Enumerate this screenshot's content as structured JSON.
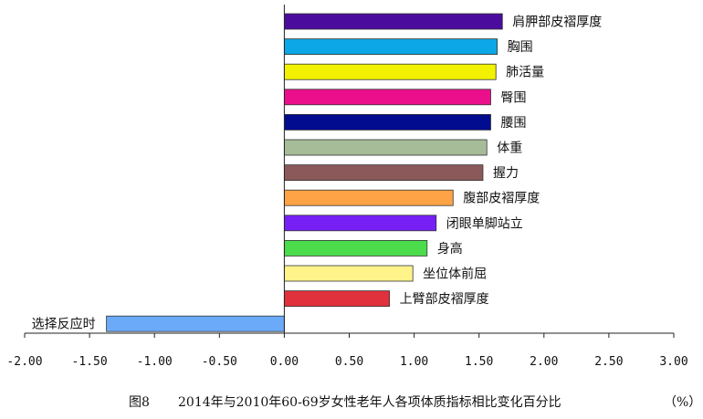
{
  "chart_data": {
    "type": "bar",
    "orientation": "horizontal",
    "categories": [
      "肩胛部皮褶厚度",
      "胸围",
      "肺活量",
      "臀围",
      "腰围",
      "体重",
      "握力",
      "腹部皮褶厚度",
      "闭眼单脚站立",
      "身高",
      "坐位体前屈",
      "上臂部皮褶厚度",
      "选择反应时"
    ],
    "values": [
      1.68,
      1.64,
      1.63,
      1.59,
      1.59,
      1.56,
      1.53,
      1.3,
      1.17,
      1.1,
      0.99,
      0.81,
      -1.37
    ],
    "colors": [
      "#4B0C9E",
      "#0BA7E6",
      "#F2F200",
      "#EC0F8C",
      "#020C8F",
      "#A6BC98",
      "#8B5959",
      "#FFA347",
      "#7620F6",
      "#4BDB4B",
      "#FFF38A",
      "#E0313C",
      "#6AAAF8"
    ],
    "xlim": [
      -2.0,
      3.0
    ],
    "x_ticks": [
      "-2.00",
      "-1.50",
      "-1.00",
      "-0.50",
      "0.00",
      "0.50",
      "1.00",
      "1.50",
      "2.00",
      "2.50",
      "3.00"
    ],
    "grid": false,
    "legend": "none"
  },
  "caption": {
    "figure_number": "图8",
    "title": "2014年与2010年60-69岁女性老年人各项体质指标相比变化百分比",
    "unit": "（%）"
  }
}
